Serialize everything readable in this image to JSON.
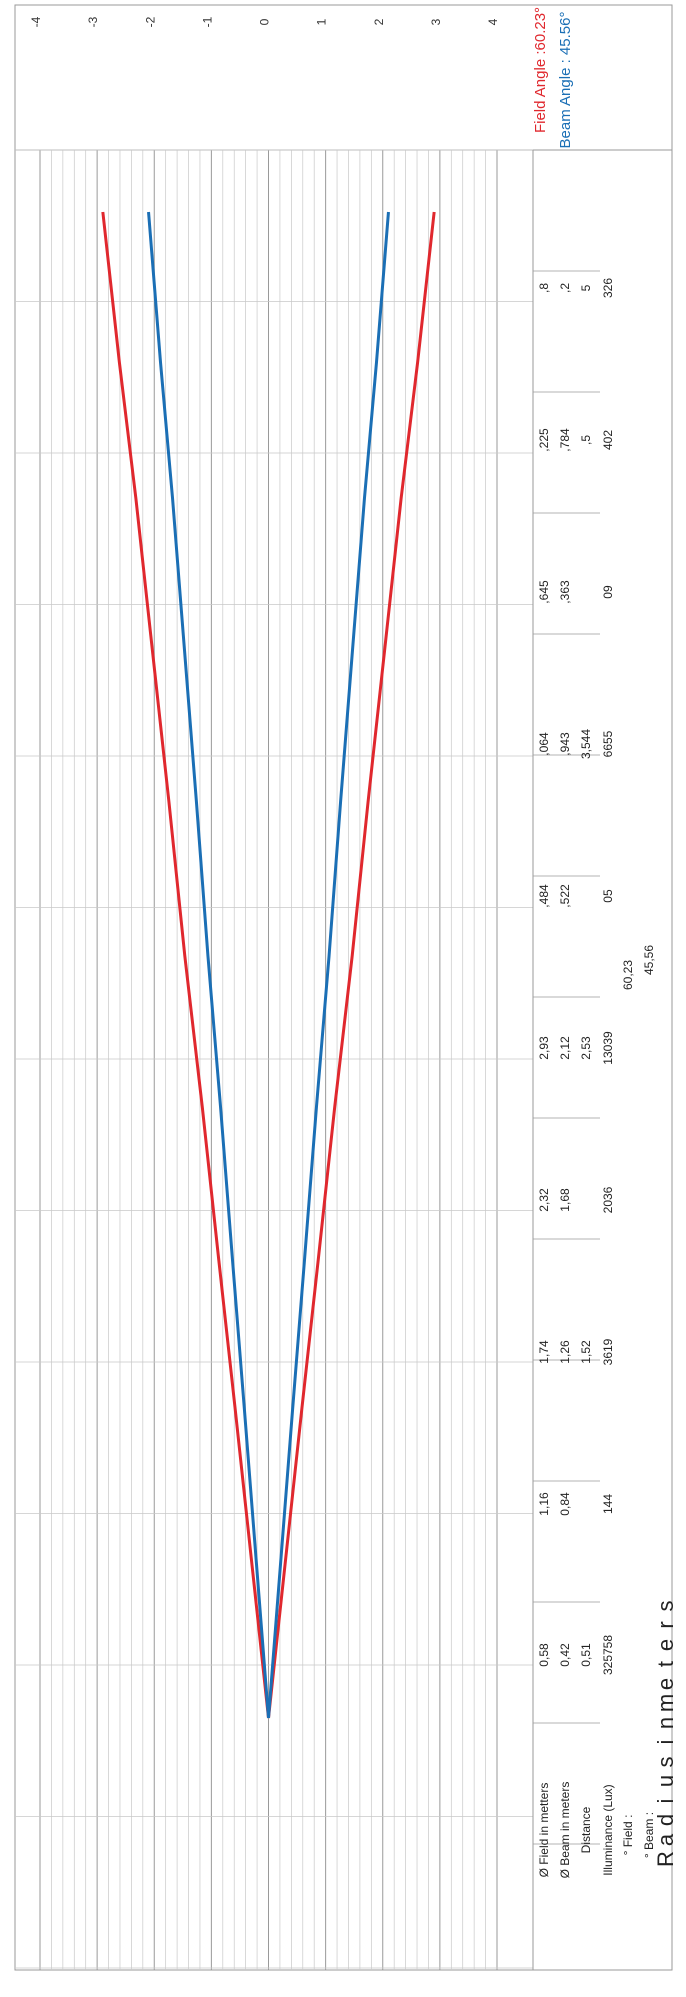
{
  "chart_data": {
    "type": "line",
    "x": [
      0,
      0.51,
      1.02,
      1.52,
      2.03,
      2.53,
      3.04,
      3.544,
      4.05,
      4.5,
      5
    ],
    "series": [
      {
        "name": "Field Angle :60.23°",
        "color": "#e0282e",
        "values": [
          0,
          0.29,
          0.58,
          0.87,
          1.16,
          1.465,
          1.742,
          2.032,
          2.322,
          2.61,
          2.9
        ]
      },
      {
        "name": "Beam Angle : 45.56°",
        "color": "#1b6fb5",
        "values": [
          0,
          0.21,
          0.42,
          0.63,
          0.84,
          1.06,
          1.261,
          1.47,
          1.68,
          1.89,
          2.1
        ]
      }
    ],
    "mirror_series": true,
    "ylim": [
      -4,
      4
    ],
    "yticks": [
      "4",
      "3",
      "2",
      "1",
      "0",
      "-1",
      "-2",
      "-3",
      "-4"
    ],
    "ylabel": "Radius in meters",
    "grid": true,
    "legend": "top-right",
    "table": {
      "row_labels": [
        "Ø Field in metters",
        "Ø Beam in meters",
        "Distance",
        "Illuminance (Lux)"
      ],
      "columns": [
        [
          "0,58",
          "0,42",
          "0,51",
          "325758"
        ],
        [
          "1,16",
          "0,84",
          "",
          "144"
        ],
        [
          "1,74",
          "1,26",
          "1,52",
          "3619"
        ],
        [
          "2,32",
          "1,68",
          "",
          "2036"
        ],
        [
          "2,93",
          "2,12",
          "2,53",
          "13039"
        ],
        [
          ",484",
          ",522",
          "",
          "05"
        ],
        [
          ",064",
          ",943",
          "3,544",
          "6655"
        ],
        [
          ",645",
          ",363",
          "",
          "09"
        ],
        [
          ",225",
          ",784",
          ",5",
          "402"
        ],
        [
          ",8",
          ",2",
          "5",
          "326"
        ]
      ],
      "field_label": "° Field :",
      "beam_label": "° Beam :",
      "field_value": "60,23",
      "beam_value": "45,56"
    }
  }
}
